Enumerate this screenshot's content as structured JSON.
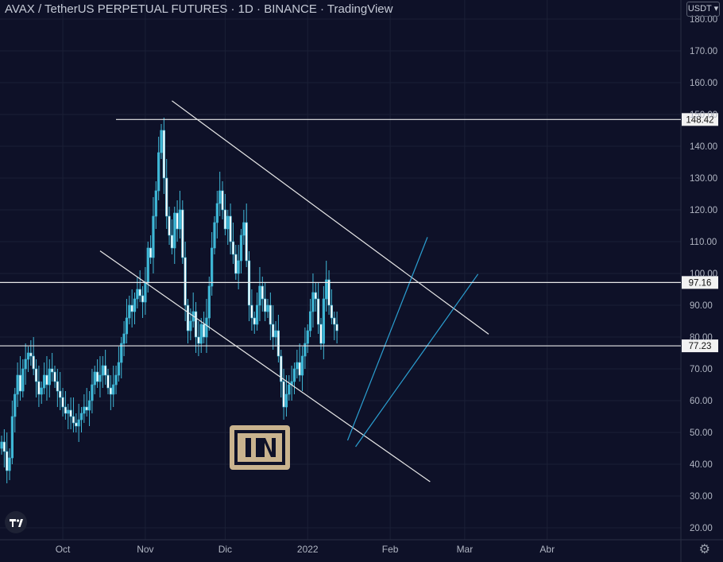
{
  "header": {
    "title": "AVAX / TetherUS PERPETUAL FUTURES · 1D · BINANCE · TradingView",
    "currency": "USDT"
  },
  "icons": {
    "brand": "tradingview-logo",
    "watermark": "beincrypto-logo",
    "settings": "gear-icon"
  },
  "colors": {
    "background": "#0e1128",
    "grid": "#1b2036",
    "candle": "#3fb7d6",
    "line_white": "#e8e8e8",
    "line_blue": "#2b9fd1",
    "axis_text": "#b0b5c2"
  },
  "chart_data": {
    "type": "candlestick",
    "symbol": "AVAX/USDT",
    "interval": "1D",
    "exchange": "BINANCE",
    "ylim": [
      18,
      183
    ],
    "y_ticks": [
      "20.00",
      "30.00",
      "40.00",
      "50.00",
      "60.00",
      "70.00",
      "80.00",
      "90.00",
      "100.00",
      "110.00",
      "120.00",
      "130.00",
      "140.00",
      "150.00",
      "160.00",
      "170.00",
      "180.00"
    ],
    "y_tick_values": [
      20,
      30,
      40,
      50,
      60,
      70,
      80,
      90,
      100,
      110,
      120,
      130,
      140,
      150,
      160,
      170,
      180
    ],
    "x_ticks": [
      "Oct",
      "Nov",
      "Dic",
      "2022",
      "Feb",
      "Mar",
      "Abr"
    ],
    "x_tick_days": [
      23,
      54,
      84,
      115,
      146,
      174,
      205
    ],
    "x_start_date": "2021-09-08",
    "horizontal_levels": [
      {
        "label": "148.42",
        "value": 148.42
      },
      {
        "label": "97.16",
        "value": 97.16
      },
      {
        "label": "77.23",
        "value": 77.23
      }
    ],
    "trendlines": [
      {
        "color": "white",
        "points": [
          [
            64,
            154.3
          ],
          [
            183,
            80.9
          ]
        ]
      },
      {
        "color": "white",
        "points": [
          [
            37,
            107.1
          ],
          [
            161,
            34.5
          ]
        ]
      },
      {
        "color": "blue",
        "points": [
          [
            130,
            47.5
          ],
          [
            160,
            111.4
          ]
        ]
      },
      {
        "color": "blue",
        "points": [
          [
            133,
            45.5
          ],
          [
            179,
            99.8
          ]
        ]
      }
    ],
    "close_series": [
      47,
      44,
      38,
      42,
      55,
      62,
      68,
      63,
      70,
      73,
      75,
      74,
      70,
      66,
      62,
      64,
      68,
      65,
      70,
      69,
      66,
      63,
      61,
      58,
      56,
      57,
      55,
      53,
      52,
      54,
      56,
      58,
      57,
      60,
      65,
      69,
      66,
      68,
      71,
      68,
      64,
      62,
      65,
      68,
      72,
      78,
      81,
      86,
      90,
      88,
      92,
      95,
      93,
      91,
      97,
      108,
      105,
      118,
      126,
      138,
      145,
      130,
      118,
      112,
      108,
      119,
      114,
      120,
      105,
      90,
      82,
      85,
      88,
      80,
      78,
      84,
      80,
      86,
      96,
      108,
      116,
      122,
      126,
      120,
      114,
      118,
      110,
      106,
      100,
      104,
      112,
      116,
      104,
      90,
      86,
      84,
      90,
      96,
      92,
      88,
      90,
      84,
      80,
      82,
      74,
      66,
      58,
      62,
      65,
      66,
      70,
      72,
      68,
      74,
      78,
      82,
      88,
      94,
      92,
      84,
      78,
      92,
      98,
      90,
      86,
      84,
      82
    ]
  }
}
